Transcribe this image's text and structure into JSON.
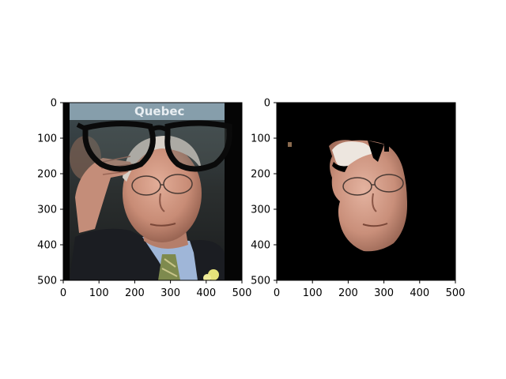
{
  "figure": {
    "panels": [
      {
        "name": "left",
        "image_description": "photo with glasses overlay",
        "sign_text": "Quebec",
        "xticks": [
          "0",
          "100",
          "200",
          "300",
          "400",
          "500"
        ],
        "yticks": [
          "0",
          "100",
          "200",
          "300",
          "400",
          "500"
        ]
      },
      {
        "name": "right",
        "image_description": "segmented face on black",
        "xticks": [
          "0",
          "100",
          "200",
          "300",
          "400",
          "500"
        ],
        "yticks": [
          "0",
          "100",
          "200",
          "300",
          "400",
          "500"
        ]
      }
    ],
    "colors": {
      "background": "#ffffff",
      "axis": "#000000",
      "skin": "#c98f7a",
      "suit": "#1b1d22",
      "shirt": "#9fb6d8",
      "tie": "#7e8a4e",
      "glasses": "#0a0a0a"
    }
  }
}
